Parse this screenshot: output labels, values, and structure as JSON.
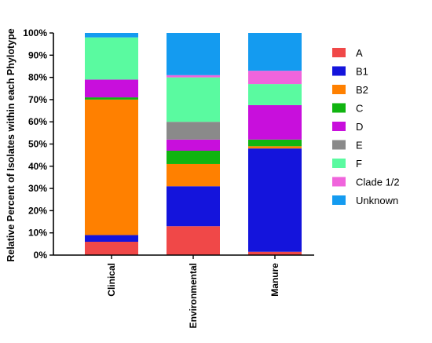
{
  "chart_data": {
    "type": "bar",
    "stacked": true,
    "ylabel": "Relative Percent of Isolates within each Phylotype",
    "xlabel": "",
    "ylim": [
      0,
      100
    ],
    "yticks": [
      "0%",
      "10%",
      "20%",
      "30%",
      "40%",
      "50%",
      "60%",
      "70%",
      "80%",
      "90%",
      "100%"
    ],
    "categories": [
      "Clinical",
      "Environmental",
      "Manure"
    ],
    "legend_position": "right",
    "series": [
      {
        "name": "A",
        "color": "#f04848",
        "values": [
          6,
          13,
          1.5
        ]
      },
      {
        "name": "B1",
        "color": "#1414dc",
        "values": [
          3,
          18,
          46.5
        ]
      },
      {
        "name": "B2",
        "color": "#ff8000",
        "values": [
          61,
          10,
          1
        ]
      },
      {
        "name": "C",
        "color": "#10b410",
        "values": [
          1,
          6,
          3
        ]
      },
      {
        "name": "D",
        "color": "#c80fdc",
        "values": [
          8,
          5,
          15.5
        ]
      },
      {
        "name": "E",
        "color": "#8a8a8a",
        "values": [
          0,
          8,
          0
        ]
      },
      {
        "name": "F",
        "color": "#5afaa0",
        "values": [
          19,
          20,
          9.5
        ]
      },
      {
        "name": "Clade 1/2",
        "color": "#f064dc",
        "values": [
          0,
          1,
          6
        ]
      },
      {
        "name": "Unknown",
        "color": "#149bf0",
        "values": [
          2,
          19,
          17
        ]
      }
    ]
  }
}
